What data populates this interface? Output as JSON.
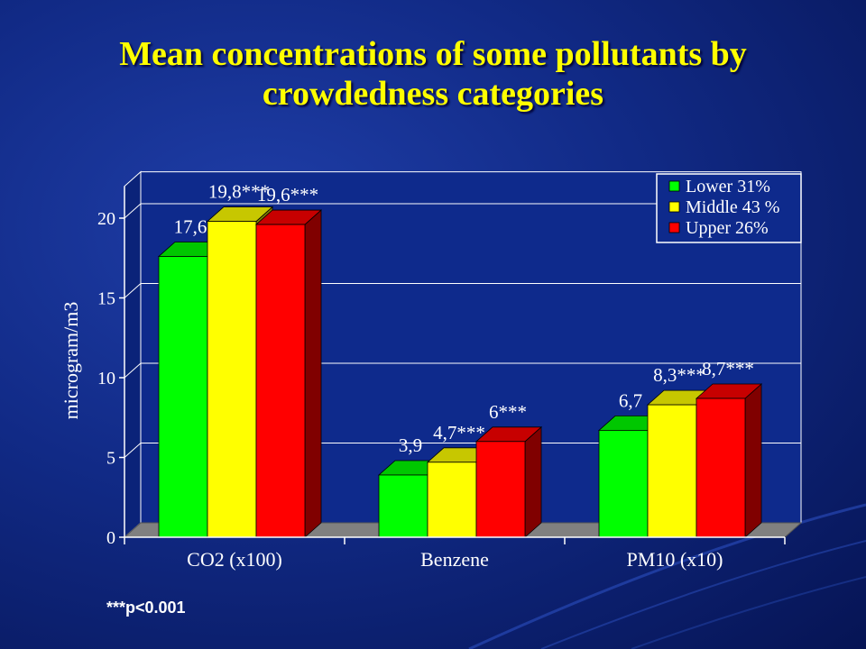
{
  "slide": {
    "title": "Mean concentrations of some pollutants by crowdedness categories",
    "footnote": "***p<0.001"
  },
  "colors": {
    "background": "#112a86",
    "title": "#ffff00",
    "plot_area": "#0e2a8c",
    "floor": "#808080"
  },
  "chart_data": {
    "type": "bar",
    "title": "",
    "xlabel": "",
    "ylabel": "microgram/m3",
    "ylim": [
      0,
      22
    ],
    "yticks": [
      0,
      5,
      10,
      15,
      20
    ],
    "ytick_labels": [
      "0",
      "5",
      "10",
      "15",
      "20"
    ],
    "grid": true,
    "legend_position": "top-right",
    "categories": [
      "CO2 (x100)",
      "Benzene",
      "PM10 (x10)"
    ],
    "series": [
      {
        "name": "Lower 31%",
        "color": "#00ff00",
        "values": [
          17.6,
          3.9,
          6.7
        ],
        "labels": [
          "17,6",
          "3,9",
          "6,7"
        ]
      },
      {
        "name": "Middle 43 %",
        "color": "#ffff00",
        "values": [
          19.8,
          4.7,
          8.3
        ],
        "labels": [
          "19,8***",
          "4,7***",
          "8,3***"
        ]
      },
      {
        "name": "Upper 26%",
        "color": "#ff0000",
        "values": [
          19.6,
          6.0,
          8.7
        ],
        "labels": [
          "19,6***",
          "6***",
          "8,7***"
        ]
      }
    ]
  }
}
